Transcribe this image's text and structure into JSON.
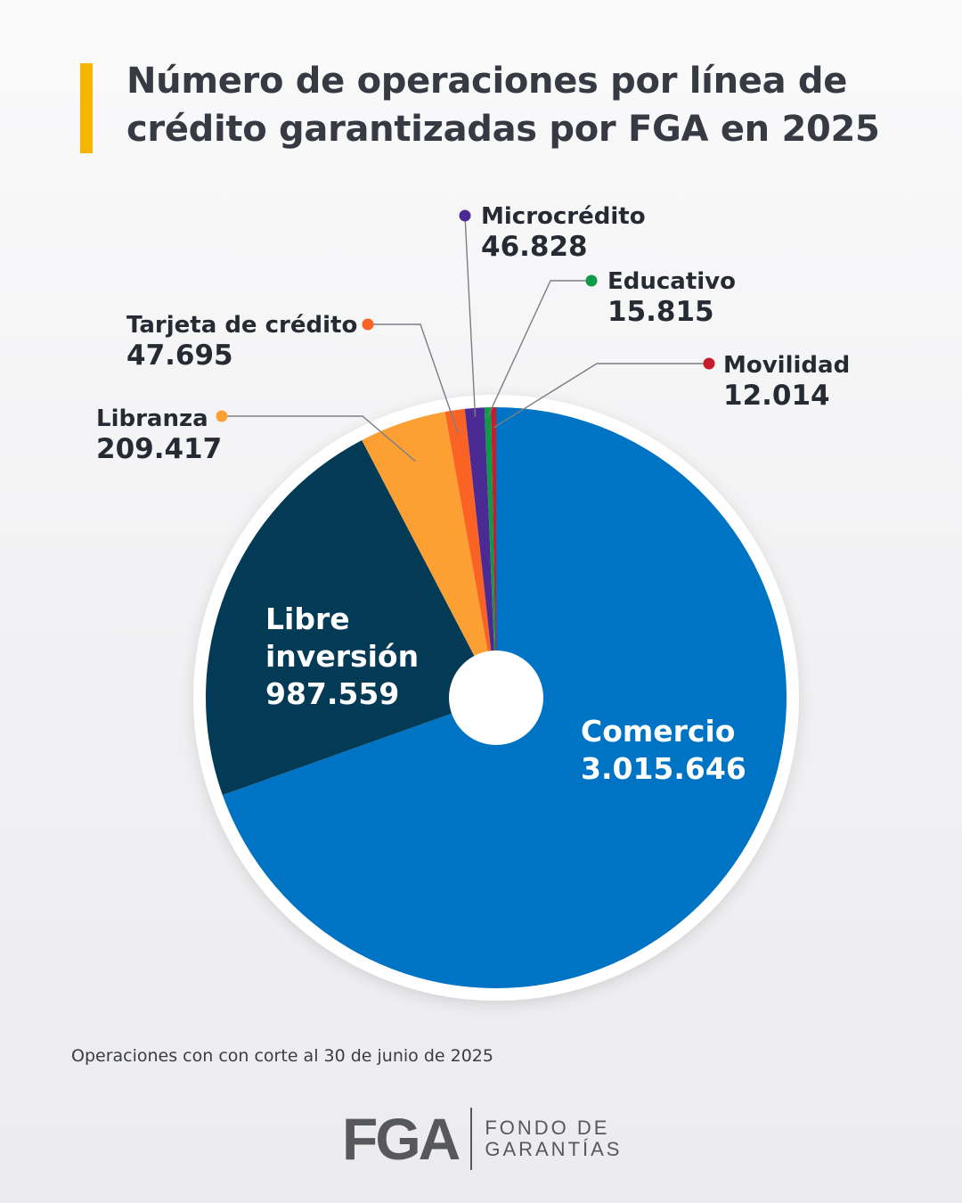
{
  "title": {
    "line1": "Número de operaciones por línea de",
    "line2": "crédito garantizadas por FGA en 2025",
    "accent_color": "#f7b500"
  },
  "chart_data": {
    "type": "pie",
    "categories": [
      "Comercio",
      "Libre inversión",
      "Libranza",
      "Tarjeta de crédito",
      "Microcrédito",
      "Educativo",
      "Movilidad"
    ],
    "values": [
      3015646,
      987559,
      209417,
      47695,
      46828,
      15815,
      12014
    ],
    "value_labels": [
      "3.015.646",
      "987.559",
      "209.417",
      "47.695",
      "46.828",
      "15.815",
      "12.014"
    ],
    "colors": [
      "#0074c4",
      "#033a55",
      "#fca033",
      "#fa6324",
      "#4c2a93",
      "#0d9a49",
      "#c61c2c"
    ],
    "start_angle_deg": 0,
    "direction": "clockwise",
    "center_hole": true
  },
  "footnote": "Operaciones con con corte al 30 de junio de 2025",
  "logo": {
    "mark": "FGA",
    "line1": "FONDO DE",
    "line2": "GARANTÍAS"
  }
}
